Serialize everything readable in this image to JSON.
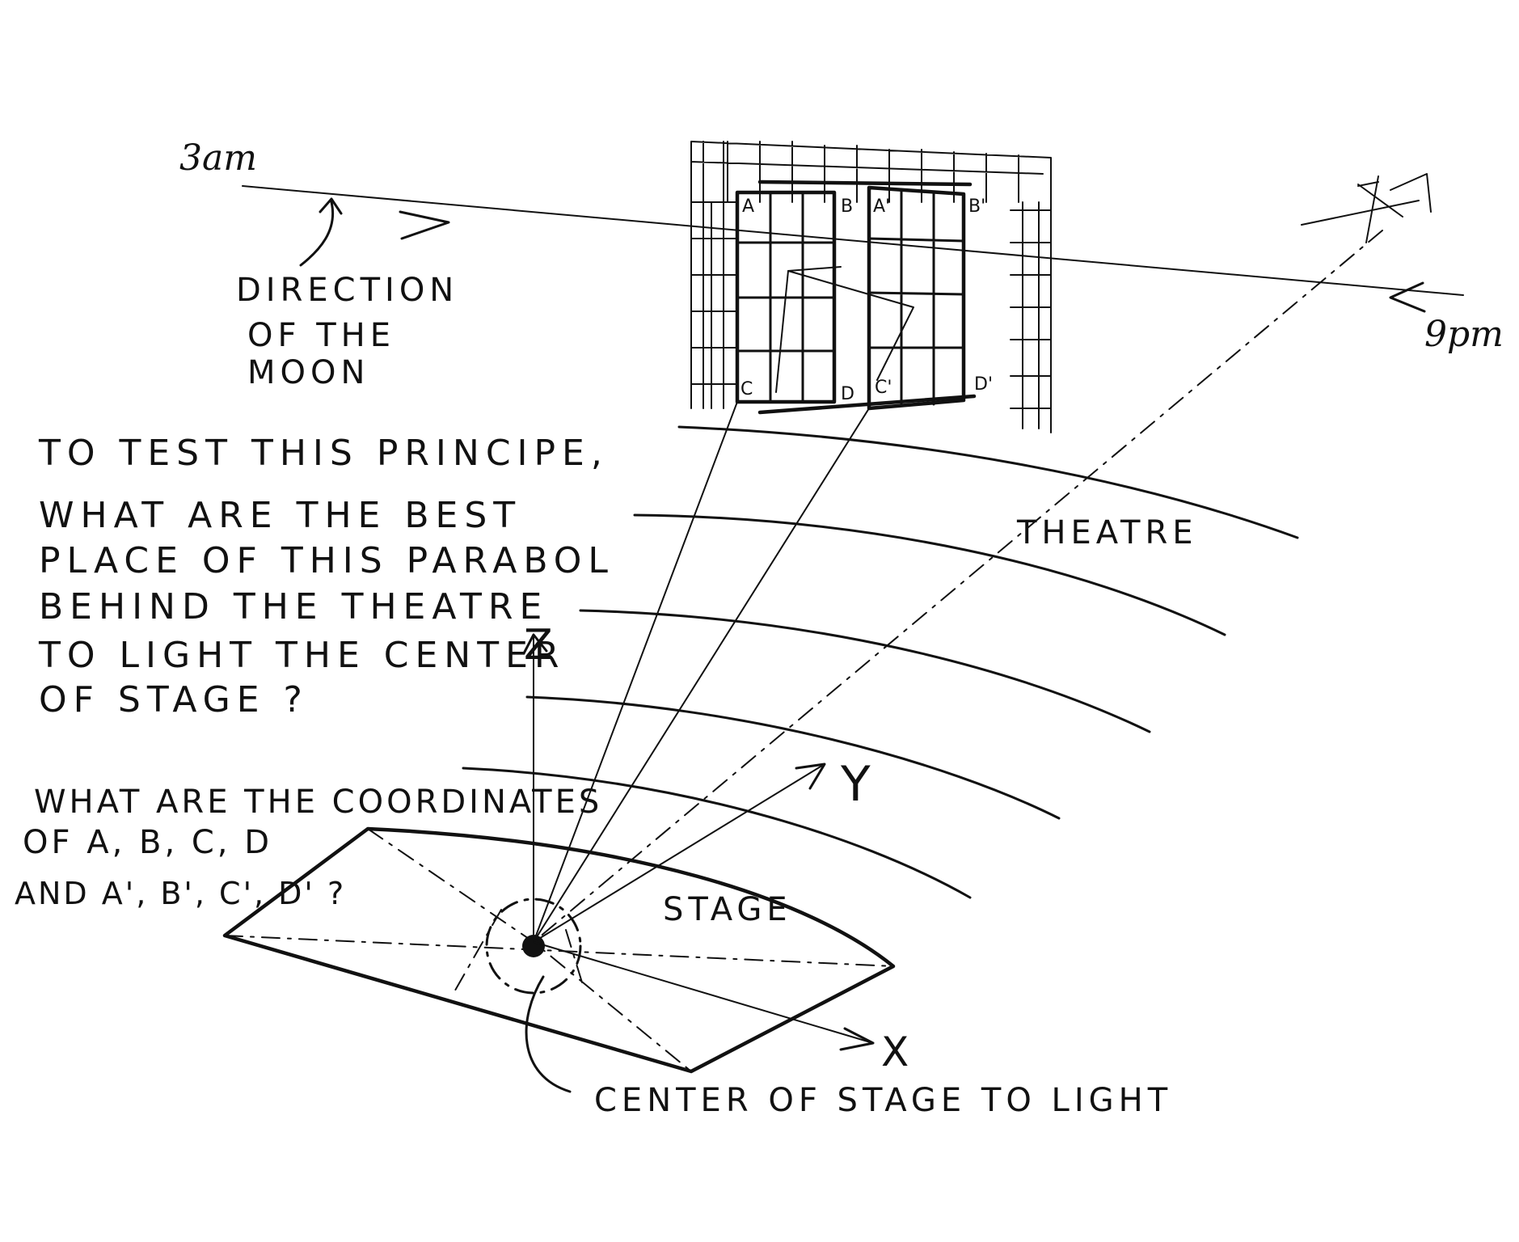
{
  "time_labels": {
    "start": "3am",
    "end": "9pm"
  },
  "moon_note": [
    "DIRECTION",
    "OF THE",
    "MOON"
  ],
  "question_1": [
    "TO TEST THIS PRINCIPE,",
    "WHAT ARE THE BEST",
    "PLACE OF THIS PARABOL",
    "BEHIND THE THEATRE",
    "TO LIGHT THE CENTER",
    "OF STAGE ?"
  ],
  "question_2": [
    "WHAT ARE THE COORDINATES",
    "OF A, B, C, D",
    "AND A', B', C', D' ?"
  ],
  "region_labels": {
    "theatre": "THEATRE",
    "stage": "STAGE"
  },
  "axes": {
    "x": "X",
    "y": "Y",
    "z": "Z"
  },
  "target_label": "CENTER OF STAGE TO LIGHT",
  "points": {
    "a": "A",
    "b": "B",
    "c": "C",
    "d": "D",
    "a2": "A'",
    "b2": "B'",
    "c2": "C'",
    "d2": "D'"
  }
}
